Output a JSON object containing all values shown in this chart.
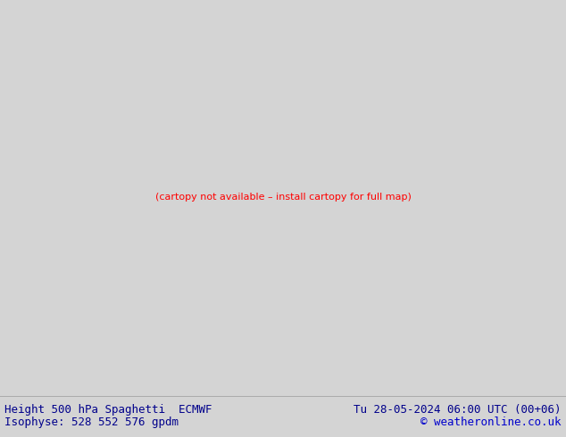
{
  "title_left": "Height 500 hPa Spaghetti  ECMWF",
  "title_right": "Tu 28-05-2024 06:00 UTC (00+06)",
  "subtitle_left": "Isophyse: 528 552 576 gpdm",
  "subtitle_right": "© weatheronline.co.uk",
  "bg_color_footer": "#d4d4d4",
  "bg_color_map": "#e0e0e0",
  "land_color": "#c8f0a0",
  "ocean_color": "#e0e0e0",
  "border_color": "#888888",
  "coastline_color": "#888888",
  "text_color": "#00008b",
  "copyright_color": "#0000cc",
  "fig_width": 6.34,
  "fig_height": 4.9,
  "dpi": 100,
  "font_size": 9,
  "spaghetti_colors": [
    "#808080",
    "#ff00ff",
    "#ff0000",
    "#00ffff",
    "#0000ff",
    "#ffff00",
    "#00ff00",
    "#ff8800",
    "#008888",
    "#880000"
  ],
  "label_color": "#404040"
}
